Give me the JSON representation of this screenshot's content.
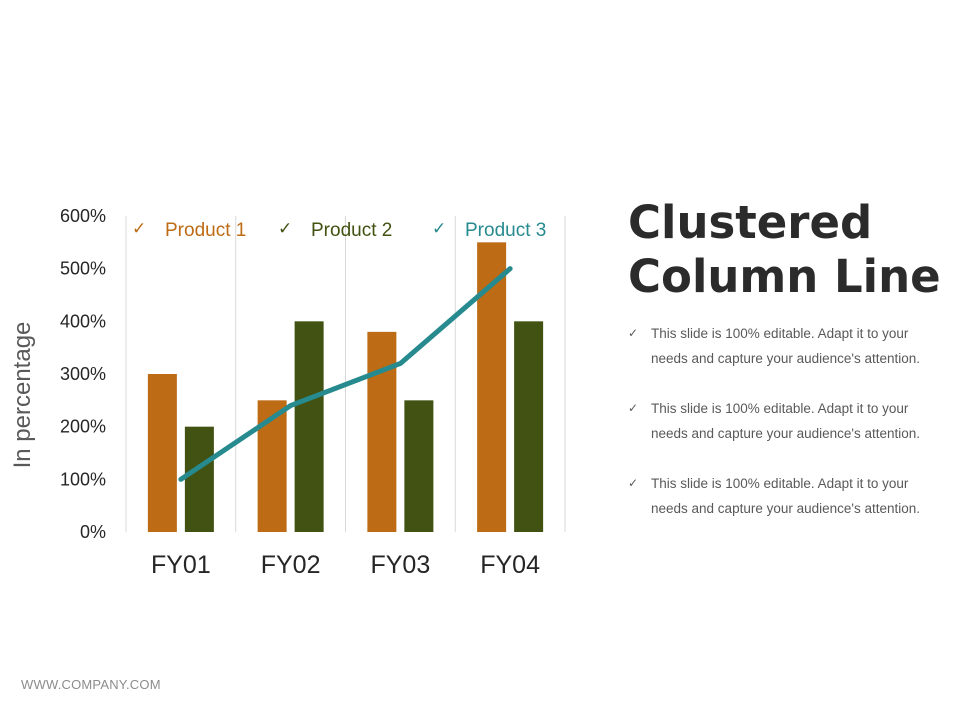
{
  "chart_data": {
    "type": "bar",
    "categories": [
      "FY01",
      "FY02",
      "FY03",
      "FY04"
    ],
    "series": [
      {
        "name": "Product 1",
        "type": "bar",
        "values": [
          300,
          250,
          380,
          550
        ],
        "color": "#bd6b14"
      },
      {
        "name": "Product 2",
        "type": "bar",
        "values": [
          200,
          400,
          250,
          400
        ],
        "color": "#415212"
      },
      {
        "name": "Product 3",
        "type": "line",
        "values": [
          100,
          240,
          320,
          500
        ],
        "color": "#268a8f"
      }
    ],
    "ylabel": "In percentage",
    "ylim": [
      0,
      600
    ],
    "yticks": [
      "0%",
      "100%",
      "200%",
      "300%",
      "400%",
      "500%",
      "600%"
    ],
    "grid": "vertical",
    "legend_position": "top",
    "legend_marker": "✓"
  },
  "title": {
    "line1": "Clustered",
    "line2": "Column Line"
  },
  "bullets": [
    {
      "icon": "check-icon",
      "text": "This slide is 100% editable. Adapt it to your needs and capture your audience's attention."
    },
    {
      "icon": "check-icon",
      "text": "This slide is 100% editable. Adapt it to your needs and capture your audience's attention."
    },
    {
      "icon": "check-icon",
      "text": "This slide is 100% editable. Adapt it to your needs and capture your audience's attention."
    }
  ],
  "footer": {
    "text": "WWW.COMPANY.COM"
  }
}
